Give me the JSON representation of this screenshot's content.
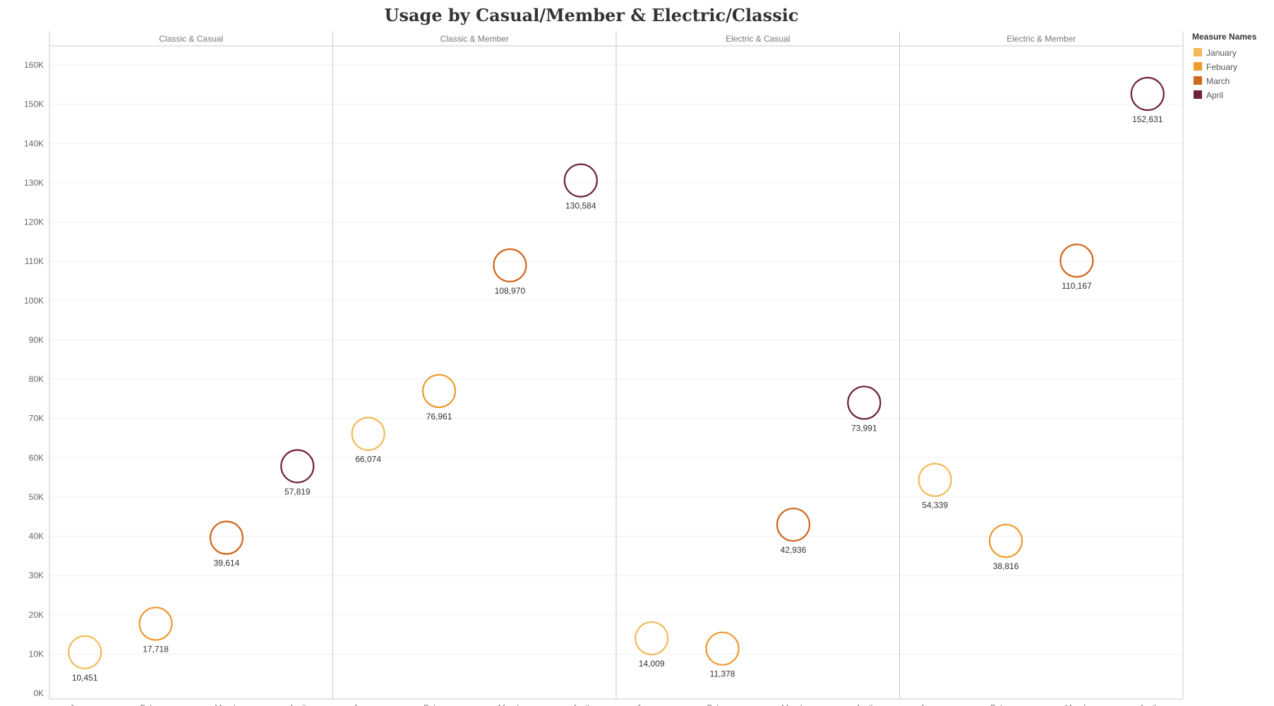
{
  "chart_data": {
    "type": "scatter",
    "title": "Usage by Casual/Member & Electric/Classic",
    "panels": [
      "Classic & Casual",
      "Classic & Member",
      "Electric & Casual",
      "Electric & Member"
    ],
    "categories": [
      "January",
      "Febuary",
      "March",
      "April"
    ],
    "ylim": [
      0,
      160000
    ],
    "yticks": [
      0,
      10000,
      20000,
      30000,
      40000,
      50000,
      60000,
      70000,
      80000,
      90000,
      100000,
      110000,
      120000,
      130000,
      140000,
      150000,
      160000
    ],
    "ytick_labels": [
      "0K",
      "10K",
      "20K",
      "30K",
      "40K",
      "50K",
      "60K",
      "70K",
      "80K",
      "90K",
      "100K",
      "110K",
      "120K",
      "130K",
      "140K",
      "150K",
      "160K"
    ],
    "grid": true,
    "legend": {
      "title": "Measure Names",
      "placement": "top-right",
      "entries": [
        "January",
        "Febuary",
        "March",
        "April"
      ]
    },
    "colors": {
      "January": "#f2bb5a",
      "Febuary": "#ee9a2f",
      "March": "#d0651d",
      "April": "#6e2337"
    },
    "series": [
      {
        "name": "Classic & Casual",
        "values": [
          10451,
          17718,
          39614,
          57819
        ],
        "labels": [
          "10,451",
          "17,718",
          "39,614",
          "57,819"
        ]
      },
      {
        "name": "Classic & Member",
        "values": [
          66074,
          76961,
          108970,
          130584
        ],
        "labels": [
          "66,074",
          "76,961",
          "108,970",
          "130,584"
        ]
      },
      {
        "name": "Electric & Casual",
        "values": [
          14009,
          11378,
          42936,
          73991
        ],
        "labels": [
          "14,009",
          "11,378",
          "42,936",
          "73,991"
        ]
      },
      {
        "name": "Electric & Member",
        "values": [
          54339,
          38816,
          110167,
          152631
        ],
        "labels": [
          "54,339",
          "38,816",
          "110,167",
          "152,631"
        ]
      }
    ]
  }
}
